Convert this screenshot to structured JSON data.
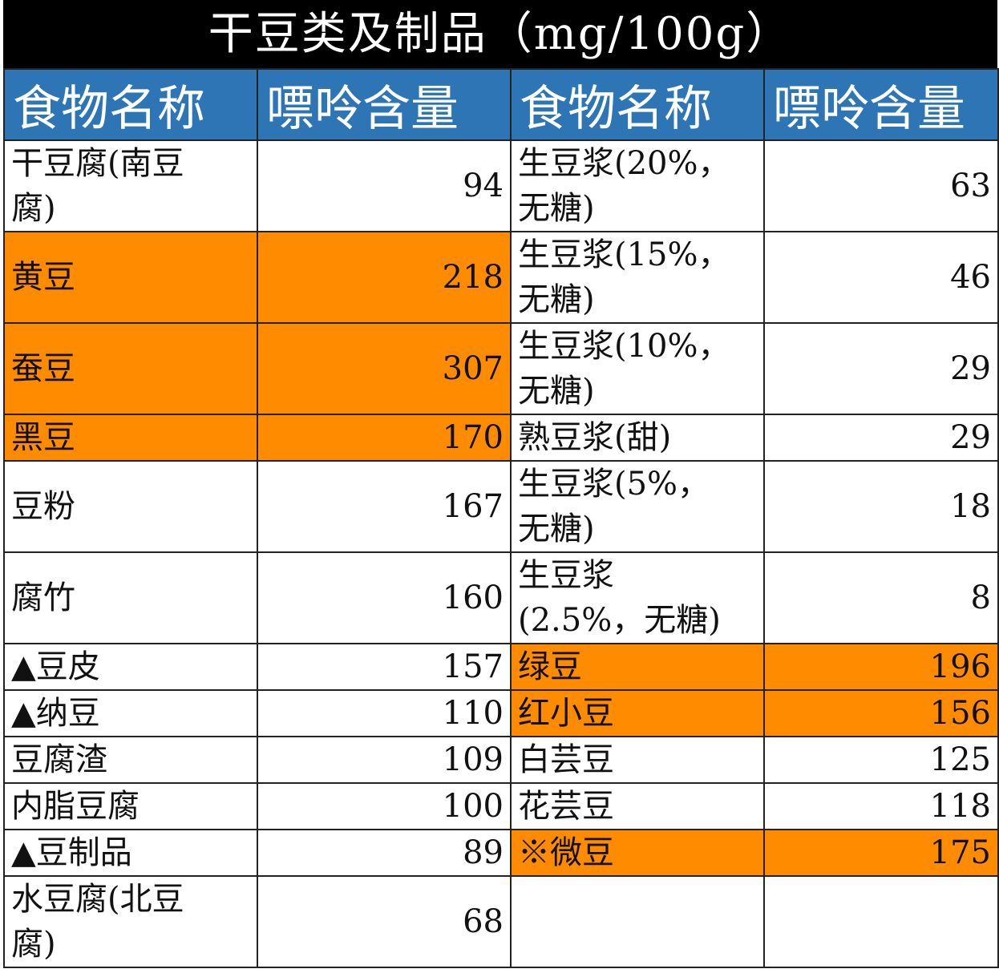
{
  "title": "干豆类及制品（mg/100g）",
  "headers": [
    "食物名称",
    "嘌呤含量",
    "食物名称",
    "嘌呤含量"
  ],
  "colors": {
    "title_bg": "#000000",
    "header_bg": "#2e75b6",
    "highlight": "#ff8c00"
  },
  "rows": [
    {
      "left": {
        "name": "干豆腐(南豆腐)",
        "value": "94",
        "highlight": false
      },
      "right": {
        "name": "生豆浆(20%，无糖)",
        "value": "63",
        "highlight": false
      }
    },
    {
      "left": {
        "name": "黄豆",
        "value": "218",
        "highlight": true
      },
      "right": {
        "name": "生豆浆(15%，无糖)",
        "value": "46",
        "highlight": false
      }
    },
    {
      "left": {
        "name": "蚕豆",
        "value": "307",
        "highlight": true
      },
      "right": {
        "name": "生豆浆(10%，无糖)",
        "value": "29",
        "highlight": false
      }
    },
    {
      "left": {
        "name": "黑豆",
        "value": "170",
        "highlight": true
      },
      "right": {
        "name": "熟豆浆(甜)",
        "value": "29",
        "highlight": false
      }
    },
    {
      "left": {
        "name": "豆粉",
        "value": "167",
        "highlight": false
      },
      "right": {
        "name": "生豆浆(5%，无糖)",
        "value": "18",
        "highlight": false
      }
    },
    {
      "left": {
        "name": "腐竹",
        "value": "160",
        "highlight": false
      },
      "right": {
        "name": "生豆浆(2.5%，无糖)",
        "value": "8",
        "highlight": false
      }
    },
    {
      "left": {
        "name": "▲豆皮",
        "value": "157",
        "highlight": false
      },
      "right": {
        "name": "绿豆",
        "value": "196",
        "highlight": true
      }
    },
    {
      "left": {
        "name": "▲纳豆",
        "value": "110",
        "highlight": false
      },
      "right": {
        "name": "红小豆",
        "value": "156",
        "highlight": true
      }
    },
    {
      "left": {
        "name": "豆腐渣",
        "value": "109",
        "highlight": false
      },
      "right": {
        "name": "白芸豆",
        "value": "125",
        "highlight": false
      }
    },
    {
      "left": {
        "name": "内脂豆腐",
        "value": "100",
        "highlight": false
      },
      "right": {
        "name": "花芸豆",
        "value": "118",
        "highlight": false
      }
    },
    {
      "left": {
        "name": "▲豆制品",
        "value": "89",
        "highlight": false
      },
      "right": {
        "name": "※微豆",
        "value": "175",
        "highlight": true
      }
    },
    {
      "left": {
        "name": "水豆腐(北豆腐)",
        "value": "68",
        "highlight": false
      },
      "right": {
        "name": "",
        "value": "",
        "highlight": false
      }
    }
  ]
}
